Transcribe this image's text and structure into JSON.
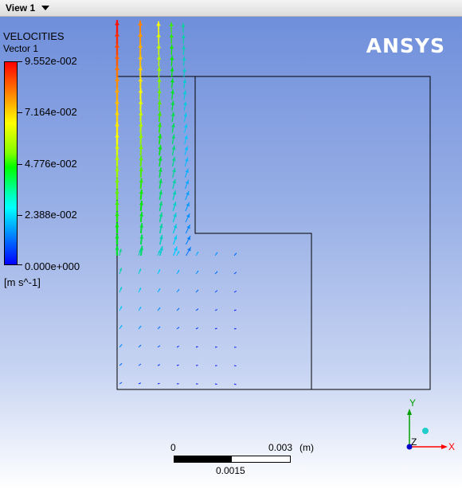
{
  "view": {
    "tab_label": "View 1"
  },
  "logo": "ANSYS",
  "legend": {
    "title": "VELOCITIES",
    "subtitle": "Vector 1",
    "values": [
      "9.552e-002",
      "7.164e-002",
      "4.776e-002",
      "2.388e-002",
      "0.000e+000"
    ],
    "units": "[m s^-1]"
  },
  "scale": {
    "zero": "0",
    "max": "0.003",
    "unit": "(m)",
    "mid": "0.0015"
  },
  "axes": {
    "x": "X",
    "y": "Y",
    "z": "Z"
  },
  "colors": {
    "background_top": "#6f8fdb",
    "background_bottom": "#ffffff",
    "axis_x": "#ff0000",
    "axis_y": "#00a000",
    "axis_z": "#0000ff"
  }
}
